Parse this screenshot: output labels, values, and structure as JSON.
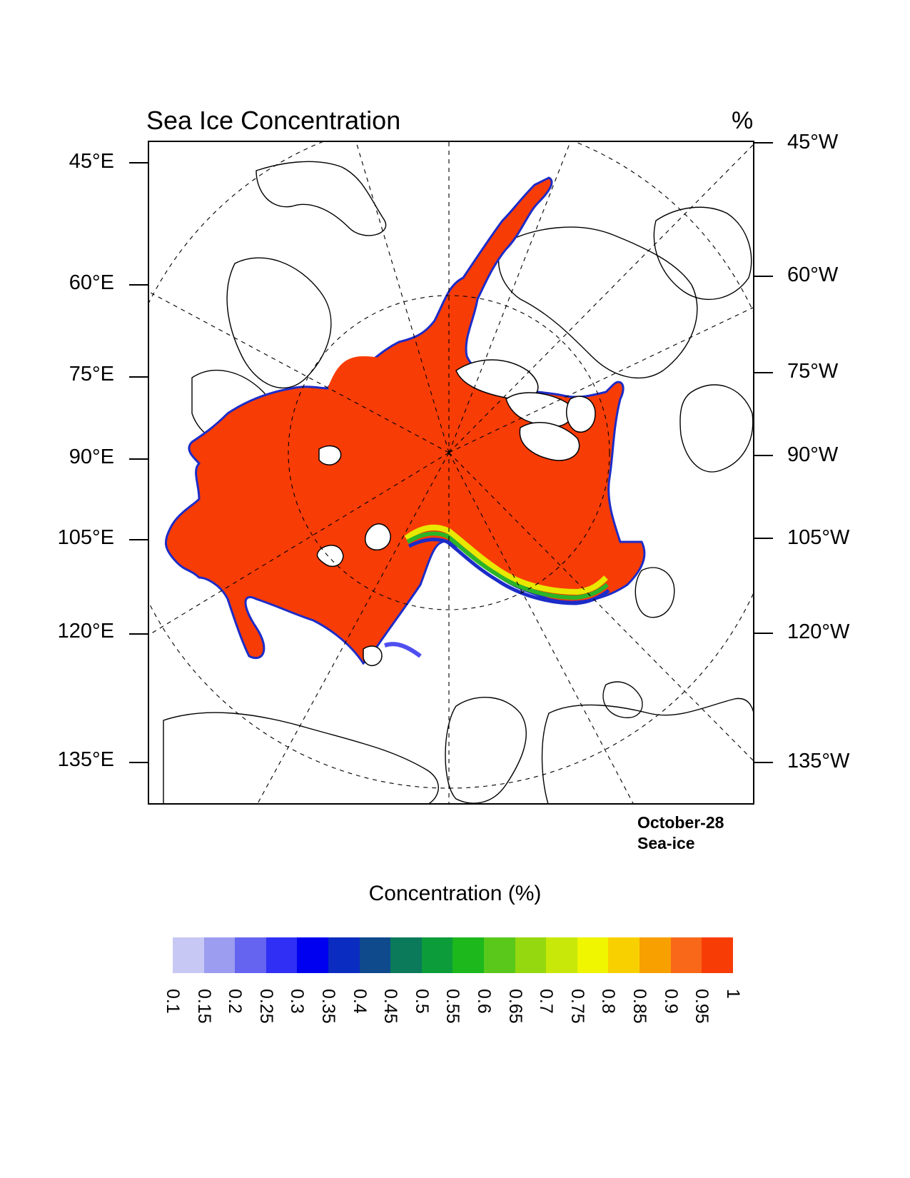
{
  "title": "Sea Ice Concentration",
  "units": "%",
  "left_labels": [
    "45°E",
    "60°E",
    "75°E",
    "90°E",
    "105°E",
    "120°E",
    "135°E"
  ],
  "right_labels": [
    "45°W",
    "60°W",
    "75°W",
    "90°W",
    "105°W",
    "120°W",
    "135°W"
  ],
  "date": "October-28",
  "variable": "Sea-ice",
  "colorbar": {
    "title": "Concentration (%)",
    "labels": [
      "0.1",
      "0.15",
      "0.2",
      "0.25",
      "0.3",
      "0.35",
      "0.4",
      "0.45",
      "0.5",
      "0.55",
      "0.6",
      "0.65",
      "0.7",
      "0.75",
      "0.8",
      "0.85",
      "0.9",
      "0.95",
      "1"
    ],
    "colors": [
      "#c8c8f5",
      "#9c9cf0",
      "#6464f0",
      "#2f2ff5",
      "#0000f0",
      "#0a2cc0",
      "#0e4a8c",
      "#0a7a5a",
      "#0c9c3a",
      "#1cb81c",
      "#5ac81a",
      "#96d810",
      "#c8e80a",
      "#f0f500",
      "#f8d000",
      "#f8a000",
      "#f86818",
      "#f83c06"
    ]
  },
  "colors": {
    "ice": "#f83c06",
    "edge_blue": "#1c2cc8",
    "edge_green": "#2cb428",
    "edge_yellow": "#e8e800",
    "outline": "#000000"
  }
}
